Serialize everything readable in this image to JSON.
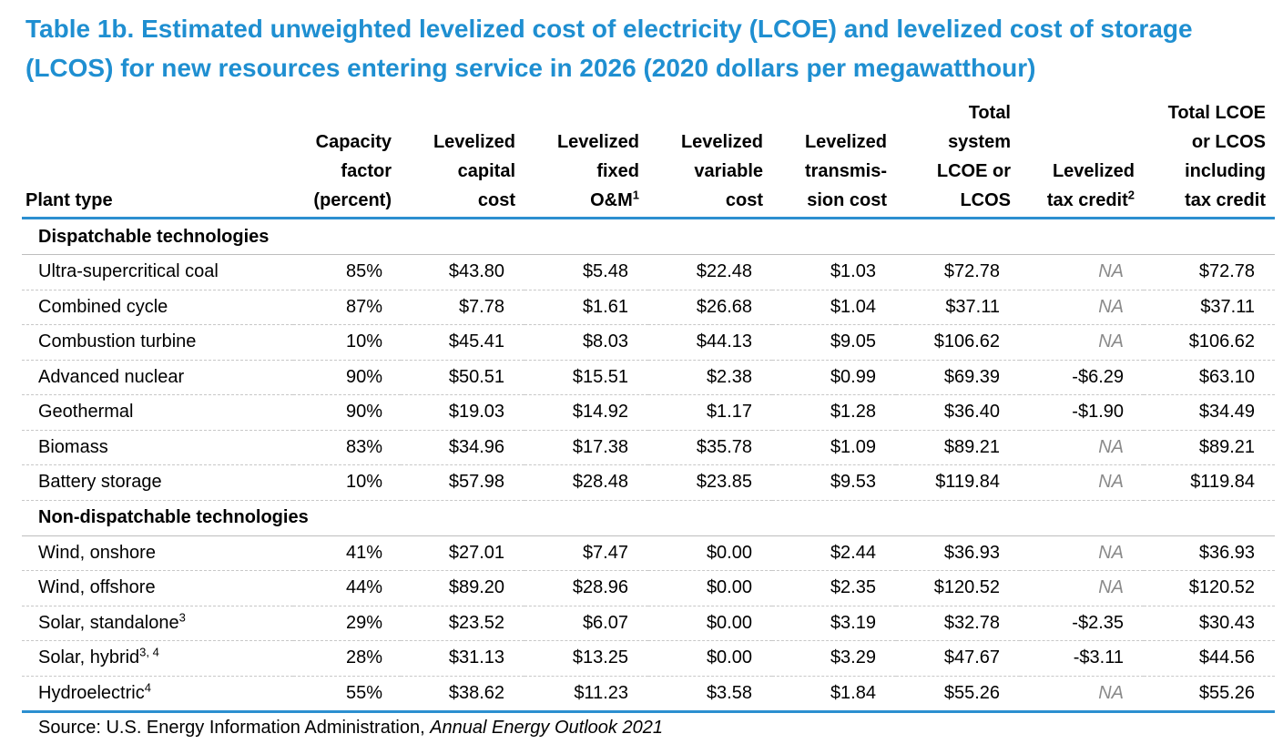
{
  "title": "Table 1b. Estimated unweighted levelized cost of electricity (LCOE) and levelized cost of storage (LCOS) for new resources entering service in 2026 (2020 dollars per megawatthour)",
  "colors": {
    "title": "#1f8fd1",
    "rule": "#2c8fd0",
    "na_text": "#8a8a8a"
  },
  "headers": {
    "plant_type": "Plant type",
    "capacity_factor": "Capacity factor (percent)",
    "capital_cost": "Levelized capital cost",
    "fixed_om": "Levelized fixed O&M",
    "fixed_om_note": "1",
    "variable_cost": "Levelized variable cost",
    "transmission_cost": "Levelized transmis- sion cost",
    "total": "Total system LCOE or LCOS",
    "tax_credit": "Levelized tax credit",
    "tax_credit_note": "2",
    "total_incl": "Total LCOE or LCOS including tax credit"
  },
  "groups": [
    {
      "label": "Dispatchable technologies",
      "rows": [
        {
          "plant": "Ultra-supercritical coal",
          "note": "",
          "cap": "85%",
          "capital": "$43.80",
          "fixed": "$5.48",
          "variable": "$22.48",
          "trans": "$1.03",
          "total": "$72.78",
          "tax": "NA",
          "incl": "$72.78"
        },
        {
          "plant": "Combined cycle",
          "note": "",
          "cap": "87%",
          "capital": "$7.78",
          "fixed": "$1.61",
          "variable": "$26.68",
          "trans": "$1.04",
          "total": "$37.11",
          "tax": "NA",
          "incl": "$37.11"
        },
        {
          "plant": "Combustion turbine",
          "note": "",
          "cap": "10%",
          "capital": "$45.41",
          "fixed": "$8.03",
          "variable": "$44.13",
          "trans": "$9.05",
          "total": "$106.62",
          "tax": "NA",
          "incl": "$106.62"
        },
        {
          "plant": "Advanced nuclear",
          "note": "",
          "cap": "90%",
          "capital": "$50.51",
          "fixed": "$15.51",
          "variable": "$2.38",
          "trans": "$0.99",
          "total": "$69.39",
          "tax": "-$6.29",
          "incl": "$63.10"
        },
        {
          "plant": "Geothermal",
          "note": "",
          "cap": "90%",
          "capital": "$19.03",
          "fixed": "$14.92",
          "variable": "$1.17",
          "trans": "$1.28",
          "total": "$36.40",
          "tax": "-$1.90",
          "incl": "$34.49"
        },
        {
          "plant": "Biomass",
          "note": "",
          "cap": "83%",
          "capital": "$34.96",
          "fixed": "$17.38",
          "variable": "$35.78",
          "trans": "$1.09",
          "total": "$89.21",
          "tax": "NA",
          "incl": "$89.21"
        },
        {
          "plant": "Battery storage",
          "note": "",
          "cap": "10%",
          "capital": "$57.98",
          "fixed": "$28.48",
          "variable": "$23.85",
          "trans": "$9.53",
          "total": "$119.84",
          "tax": "NA",
          "incl": "$119.84"
        }
      ]
    },
    {
      "label": "Non-dispatchable technologies",
      "rows": [
        {
          "plant": "Wind, onshore",
          "note": "",
          "cap": "41%",
          "capital": "$27.01",
          "fixed": "$7.47",
          "variable": "$0.00",
          "trans": "$2.44",
          "total": "$36.93",
          "tax": "NA",
          "incl": "$36.93"
        },
        {
          "plant": "Wind, offshore",
          "note": "",
          "cap": "44%",
          "capital": "$89.20",
          "fixed": "$28.96",
          "variable": "$0.00",
          "trans": "$2.35",
          "total": "$120.52",
          "tax": "NA",
          "incl": "$120.52"
        },
        {
          "plant": "Solar, standalone",
          "note": "3",
          "cap": "29%",
          "capital": "$23.52",
          "fixed": "$6.07",
          "variable": "$0.00",
          "trans": "$3.19",
          "total": "$32.78",
          "tax": "-$2.35",
          "incl": "$30.43"
        },
        {
          "plant": "Solar, hybrid",
          "note": "3, 4",
          "cap": "28%",
          "capital": "$31.13",
          "fixed": "$13.25",
          "variable": "$0.00",
          "trans": "$3.29",
          "total": "$47.67",
          "tax": "-$3.11",
          "incl": "$44.56"
        },
        {
          "plant": "Hydroelectric",
          "note": "4",
          "cap": "55%",
          "capital": "$38.62",
          "fixed": "$11.23",
          "variable": "$3.58",
          "trans": "$1.84",
          "total": "$55.26",
          "tax": "NA",
          "incl": "$55.26"
        }
      ]
    }
  ],
  "source": {
    "prefix": "Source: U.S. Energy Information Administration,",
    "publication": "Annual Energy Outlook 2021"
  }
}
